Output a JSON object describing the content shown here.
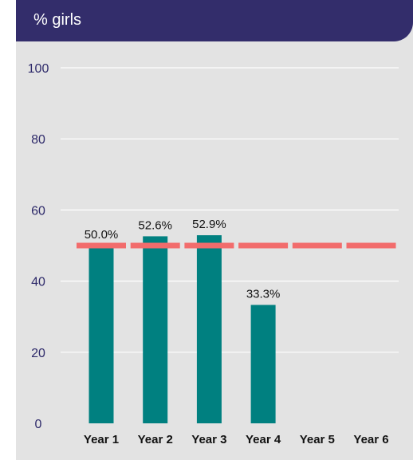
{
  "header": {
    "title": "% girls"
  },
  "colors": {
    "header_bg": "#332d6b",
    "panel_bg": "#e3e3e3",
    "bar": "#008080",
    "reference_line": "#f26c6c",
    "gridline": "#ffffff"
  },
  "chart_data": {
    "type": "bar",
    "title": "% girls",
    "xlabel": "",
    "ylabel": "",
    "categories": [
      "Year 1",
      "Year 2",
      "Year 3",
      "Year 4",
      "Year 5",
      "Year 6"
    ],
    "values": [
      50.0,
      52.6,
      52.9,
      33.3,
      null,
      null
    ],
    "data_labels": [
      "50.0%",
      "52.6%",
      "52.9%",
      "33.3%",
      "",
      ""
    ],
    "reference_line": {
      "value": 50,
      "style": "dashed"
    },
    "ylim": [
      0,
      100
    ],
    "yticks": [
      0,
      20,
      40,
      60,
      80,
      100
    ],
    "grid": true,
    "legend": "none"
  }
}
